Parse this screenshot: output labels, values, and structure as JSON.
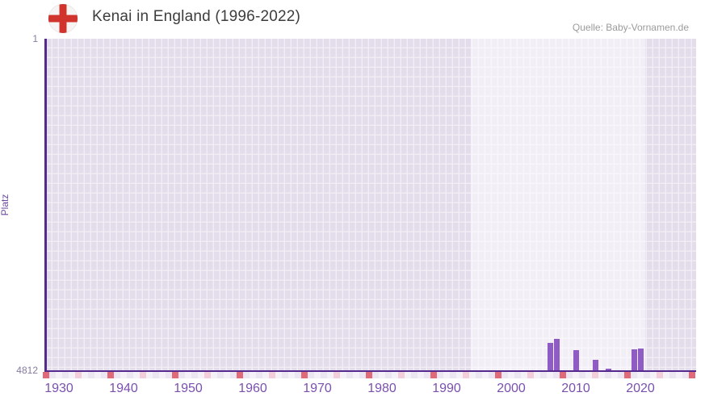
{
  "header": {
    "title": "Kenai in England (1996-2022)",
    "source": "Quelle: Baby-Vornamen.de",
    "flag_icon": "england-flag"
  },
  "chart_data": {
    "type": "bar",
    "title": "Kenai in England (1996-2022)",
    "xlabel": "",
    "ylabel": "Platz",
    "y_axis_inverted": true,
    "ylim": [
      1,
      4812
    ],
    "y_tick_labels": [
      "1",
      "4812"
    ],
    "x_ticks": [
      "1930",
      "1940",
      "1950",
      "1960",
      "1970",
      "1980",
      "1990",
      "2000",
      "2010",
      "2020"
    ],
    "x_range_years": [
      1928,
      2028
    ],
    "highlight_period_years": [
      1994,
      2021
    ],
    "grid": "checkerboard",
    "legend": null,
    "series": [
      {
        "name": "Platz",
        "data": [
          {
            "year": 2006,
            "rank": 4403
          },
          {
            "year": 2007,
            "rank": 4345
          },
          {
            "year": 2010,
            "rank": 4509
          },
          {
            "year": 2013,
            "rank": 4649
          },
          {
            "year": 2015,
            "rank": 4777
          },
          {
            "year": 2019,
            "rank": 4497
          },
          {
            "year": 2020,
            "rank": 4486
          }
        ]
      }
    ]
  },
  "theme": {
    "bar_color": "#8f5cc6",
    "axis_color": "#542a8e",
    "tick_label_color": "#7a50ae",
    "y_label_color": "#857ba1",
    "flag_red": "#d0342c",
    "strip_red": "#e0697a",
    "strip_pink": "#f3cdd7",
    "strip_pale_a": "#ece6f2",
    "strip_pale_b": "#f5f1f8",
    "grid_cell": "#e2dceb",
    "grid_gap": "#f0edf4"
  }
}
